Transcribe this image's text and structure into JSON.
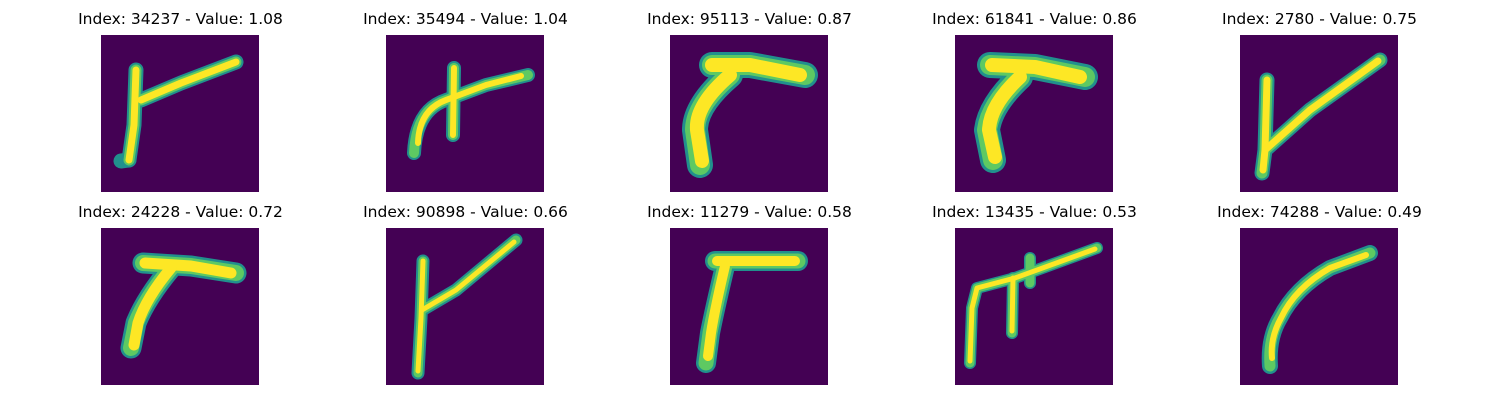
{
  "colors": {
    "background": "#440154",
    "stroke_outer": "#21908d",
    "stroke_mid": "#5ec962",
    "stroke_core": "#fde725"
  },
  "panels": [
    {
      "title": "Index: 34237 - Value: 1.08"
    },
    {
      "title": "Index: 35494 - Value: 1.04"
    },
    {
      "title": "Index: 95113 - Value: 0.87"
    },
    {
      "title": "Index: 61841 - Value: 0.86"
    },
    {
      "title": "Index: 2780 - Value: 0.75"
    },
    {
      "title": "Index: 24228 - Value: 0.72"
    },
    {
      "title": "Index: 90898 - Value: 0.66"
    },
    {
      "title": "Index: 11279 - Value: 0.58"
    },
    {
      "title": "Index: 13435 - Value: 0.53"
    },
    {
      "title": "Index: 74288 - Value: 0.49"
    }
  ]
}
